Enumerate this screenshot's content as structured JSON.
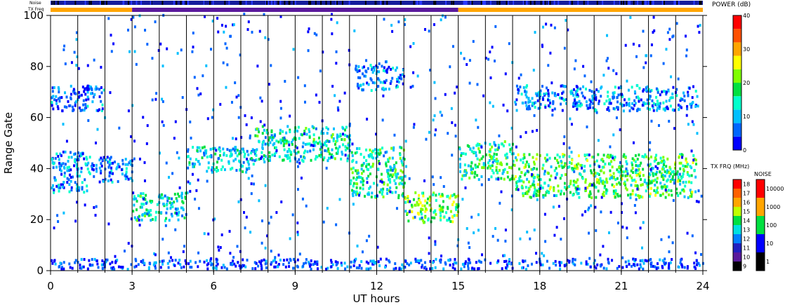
{
  "chart_data": {
    "type": "heatmap",
    "xlabel": "UT hours",
    "ylabel": "Range Gate",
    "xlim": [
      0,
      24
    ],
    "ylim": [
      0,
      100
    ],
    "x_ticks": [
      0,
      3,
      6,
      9,
      12,
      15,
      18,
      21,
      24
    ],
    "y_ticks": [
      0,
      20,
      40,
      60,
      80,
      100
    ],
    "status_bars": {
      "noise_label": "Noise",
      "txfreq_label": "TX Freq",
      "txfreq_segments": [
        {
          "start": 0,
          "end": 3,
          "color": "#ffa500"
        },
        {
          "start": 3,
          "end": 15,
          "color": "#5a1a9c"
        },
        {
          "start": 15,
          "end": 24,
          "color": "#ffa500"
        }
      ]
    },
    "power_scale": {
      "title": "POWER (dB)",
      "ticks": [
        0,
        10,
        20,
        30,
        40
      ],
      "colors": [
        "#0000ff",
        "#0066ff",
        "#00bfff",
        "#00ffcc",
        "#00e040",
        "#7fff00",
        "#ffff00",
        "#ffa500",
        "#ff5000",
        "#ff0000"
      ]
    },
    "txfreq_scale": {
      "title": "TX FRQ (MHz)",
      "ticks": [
        9,
        10,
        11,
        12,
        13,
        14,
        15,
        16,
        17,
        18
      ],
      "colors": [
        "#000000",
        "#5a1a9c",
        "#2020c0",
        "#0080ff",
        "#00e0e0",
        "#00e040",
        "#c0ff00",
        "#ffa500",
        "#ff6000",
        "#ff0000"
      ]
    },
    "noise_scale": {
      "title": "NOISE",
      "ticks": [
        "1",
        "10",
        "100",
        "1000",
        "10000"
      ],
      "colors": [
        "#000000",
        "#0000ff",
        "#00e040",
        "#ffa500",
        "#ff0000"
      ]
    },
    "bands": [
      {
        "t0": 0.0,
        "t1": 1.5,
        "g0": 30,
        "g1": 46,
        "power": 8
      },
      {
        "t0": 0.0,
        "t1": 2.0,
        "g0": 62,
        "g1": 72,
        "power": 6
      },
      {
        "t0": 1.5,
        "t1": 3.0,
        "g0": 34,
        "g1": 44,
        "power": 6
      },
      {
        "t0": 3.0,
        "t1": 5.0,
        "g0": 19,
        "g1": 30,
        "power": 14
      },
      {
        "t0": 5.0,
        "t1": 7.5,
        "g0": 38,
        "g1": 48,
        "power": 11
      },
      {
        "t0": 7.5,
        "t1": 11.0,
        "g0": 42,
        "g1": 56,
        "power": 14
      },
      {
        "t0": 11.0,
        "t1": 13.0,
        "g0": 28,
        "g1": 48,
        "power": 16
      },
      {
        "t0": 13.0,
        "t1": 15.0,
        "g0": 18,
        "g1": 30,
        "power": 20
      },
      {
        "t0": 15.0,
        "t1": 17.0,
        "g0": 35,
        "g1": 50,
        "power": 16
      },
      {
        "t0": 17.0,
        "t1": 23.8,
        "g0": 28,
        "g1": 45,
        "power": 18
      },
      {
        "t0": 17.0,
        "t1": 23.8,
        "g0": 62,
        "g1": 72,
        "power": 8
      },
      {
        "t0": 11.2,
        "t1": 13.0,
        "g0": 70,
        "g1": 80,
        "power": 7
      },
      {
        "t0": 0.0,
        "t1": 24.0,
        "g0": 0,
        "g1": 4,
        "power": 5
      }
    ]
  }
}
